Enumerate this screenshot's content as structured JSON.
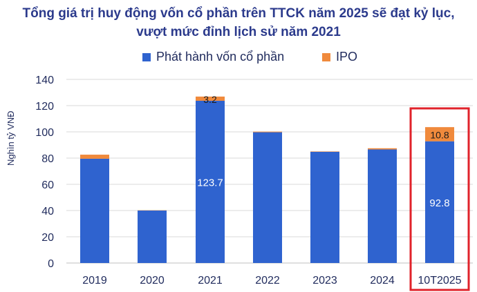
{
  "title_line1": "Tổng giá trị huy động vốn cổ phần trên TTCK năm 2025 sẽ đạt kỷ lục,",
  "title_line2": "vượt mức đỉnh lịch sử năm 2021",
  "colors": {
    "primary": "#2f63cf",
    "ipo": "#f08a3c",
    "highlight_box": "#e0222a",
    "axis_text": "#1f2a5c",
    "grid": "#d9d9d9"
  },
  "chart_data": {
    "type": "bar",
    "stacked": true,
    "ylabel": "Nghìn tỷ VNĐ",
    "ylim": [
      0,
      140
    ],
    "yticks": [
      0,
      20,
      40,
      60,
      80,
      100,
      120,
      140
    ],
    "grid": true,
    "legend_position": "top",
    "categories": [
      "2019",
      "2020",
      "2021",
      "2022",
      "2023",
      "2024",
      "10T2025"
    ],
    "series": [
      {
        "name": "Phát hành vốn cổ phần",
        "values": [
          79.5,
          40.0,
          123.7,
          99.7,
          84.8,
          86.6,
          92.8
        ],
        "labels": [
          "",
          "",
          "123.7",
          "",
          "",
          "",
          "92.8"
        ]
      },
      {
        "name": "IPO",
        "values": [
          3.1,
          0.2,
          3.2,
          0.5,
          0.3,
          0.9,
          10.8
        ],
        "labels": [
          "",
          "",
          "3.2",
          "",
          "",
          "",
          "10.8"
        ]
      }
    ],
    "highlighted_category": "10T2025"
  }
}
